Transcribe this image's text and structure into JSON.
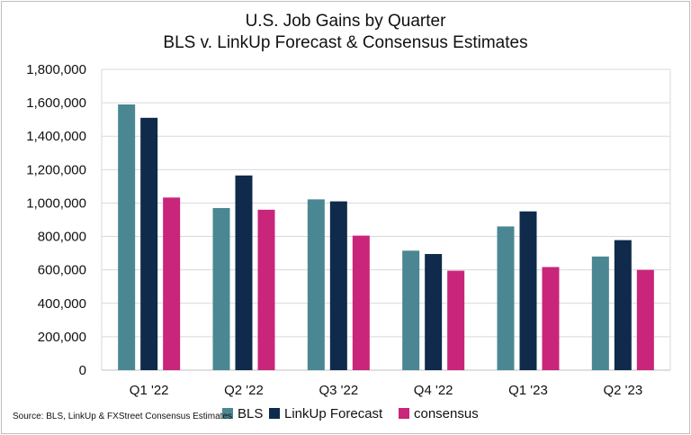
{
  "chart_data": {
    "type": "bar",
    "title": "U.S. Job Gains by Quarter",
    "subtitle": "BLS v. LinkUp Forecast & Consensus Estimates",
    "categories": [
      "Q1 '22",
      "Q2 '22",
      "Q3 '22",
      "Q4 '22",
      "Q1 '23",
      "Q2 '23"
    ],
    "series": [
      {
        "name": "BLS",
        "color": "#4a8793",
        "values": [
          1590000,
          970000,
          1022000,
          715000,
          860000,
          680000
        ]
      },
      {
        "name": "LinkUp Forecast",
        "color": "#0f2a4a",
        "values": [
          1510000,
          1165000,
          1010000,
          695000,
          950000,
          778000
        ]
      },
      {
        "name": "consensus",
        "color": "#c9257a",
        "values": [
          1033000,
          960000,
          805000,
          595000,
          617000,
          600000
        ]
      }
    ],
    "ylim": [
      0,
      1800000
    ],
    "yticks": [
      "0",
      "200,000",
      "400,000",
      "600,000",
      "800,000",
      "1,000,000",
      "1,200,000",
      "1,400,000",
      "1,600,000",
      "1,800,000"
    ],
    "grid": true,
    "legend_position": "bottom"
  },
  "source": "Source: BLS, LinkUp & FXStreet Consensus Estimates"
}
